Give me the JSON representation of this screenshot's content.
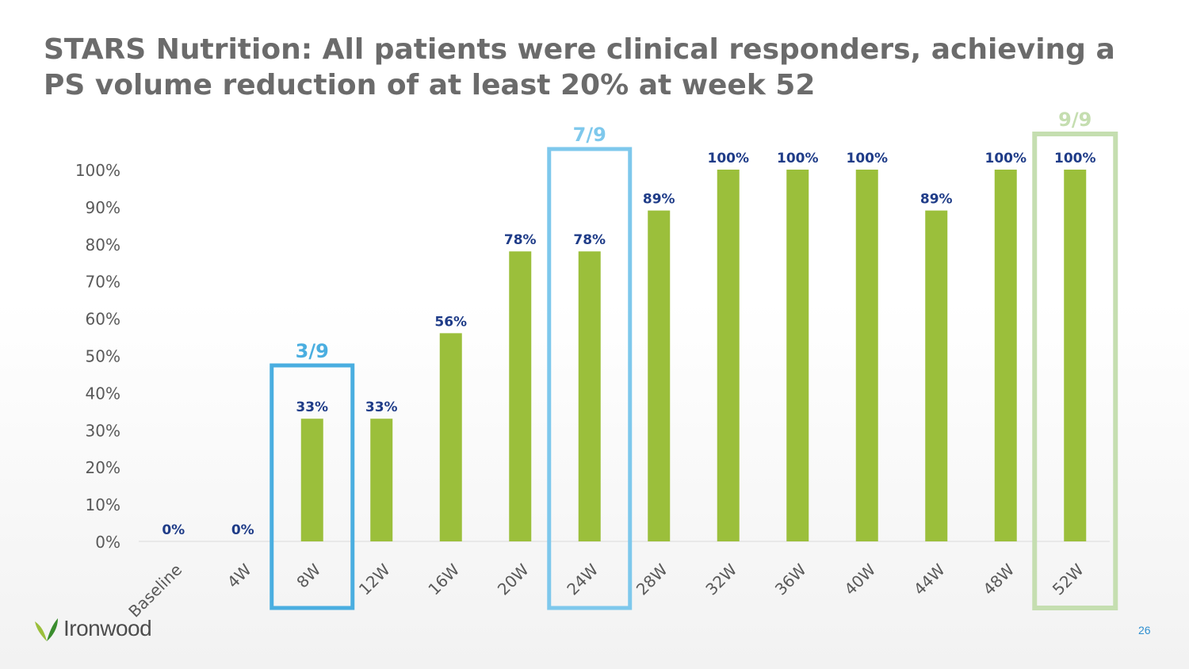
{
  "title": "STARS Nutrition: All patients were clinical responders, achieving a PS volume reduction of at least 20% at week 52",
  "logo_text": "Ironwood",
  "page_number": "26",
  "colors": {
    "bar": "#9bbf3b",
    "label": "#1f3c88",
    "axis_text": "#595959",
    "box_8w": "#4aaee0",
    "box_24w": "#7ec8ec",
    "box_52w": "#c5deb0"
  },
  "chart_data": {
    "type": "bar",
    "title": "",
    "xlabel": "",
    "ylabel": "",
    "ylim": [
      0,
      100
    ],
    "yticks": [
      "0%",
      "10%",
      "20%",
      "30%",
      "40%",
      "50%",
      "60%",
      "70%",
      "80%",
      "90%",
      "100%"
    ],
    "categories": [
      "Baseline",
      "4W",
      "8W",
      "12W",
      "16W",
      "20W",
      "24W",
      "28W",
      "32W",
      "36W",
      "40W",
      "44W",
      "48W",
      "52W"
    ],
    "values": [
      0,
      0,
      33,
      33,
      56,
      78,
      78,
      89,
      100,
      100,
      100,
      89,
      100,
      100
    ],
    "data_labels": [
      "0%",
      "0%",
      "33%",
      "33%",
      "56%",
      "78%",
      "78%",
      "89%",
      "100%",
      "100%",
      "100%",
      "89%",
      "100%",
      "100%"
    ],
    "highlights": [
      {
        "category": "8W",
        "label": "3/9",
        "color": "#4aaee0"
      },
      {
        "category": "24W",
        "label": "7/9",
        "color": "#7ec8ec"
      },
      {
        "category": "52W",
        "label": "9/9",
        "color": "#c5deb0"
      }
    ]
  }
}
